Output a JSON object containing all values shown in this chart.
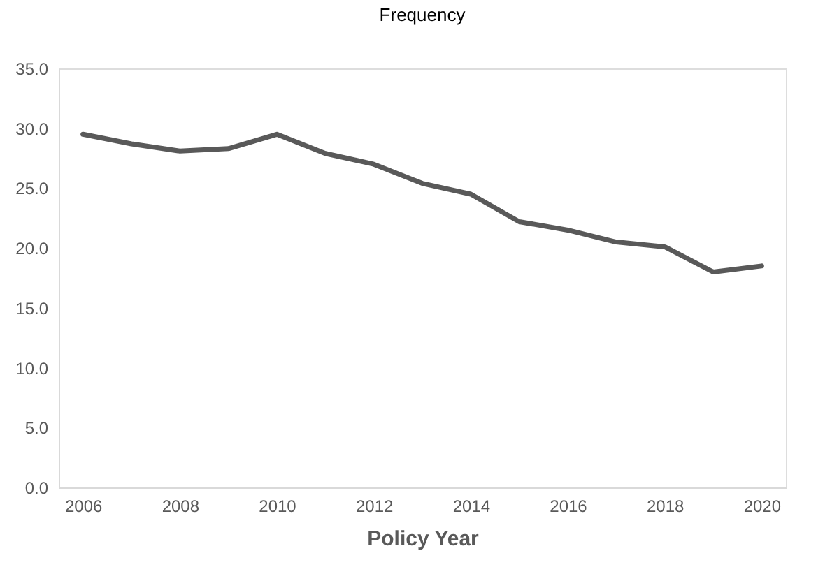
{
  "chart_data": {
    "type": "line",
    "title": "Frequency",
    "xlabel": "Policy Year",
    "x": [
      2006,
      2007,
      2008,
      2009,
      2010,
      2011,
      2012,
      2013,
      2014,
      2015,
      2016,
      2017,
      2018,
      2019,
      2020
    ],
    "series": [
      {
        "color": "#595959",
        "values": [
          29.5,
          28.7,
          28.1,
          28.3,
          29.5,
          27.9,
          27.0,
          25.4,
          24.5,
          22.2,
          21.5,
          20.5,
          20.1,
          18.0,
          18.5
        ]
      }
    ],
    "xlim": [
      2005.5,
      2020.5
    ],
    "xticks": [
      2006,
      2008,
      2010,
      2012,
      2014,
      2016,
      2018,
      2020
    ],
    "ylim": [
      0,
      35
    ],
    "yticks": [
      {
        "value": 0,
        "label": "0.0"
      },
      {
        "value": 5,
        "label": "5.0"
      },
      {
        "value": 10,
        "label": "10.0"
      },
      {
        "value": 15,
        "label": "15.0"
      },
      {
        "value": 20,
        "label": "20.0"
      },
      {
        "value": 25,
        "label": "25.0"
      },
      {
        "value": 30,
        "label": "30.0"
      },
      {
        "value": 35,
        "label": "35.0"
      }
    ],
    "grid": false,
    "legend": false,
    "marker": "none",
    "line_style": "solid"
  }
}
